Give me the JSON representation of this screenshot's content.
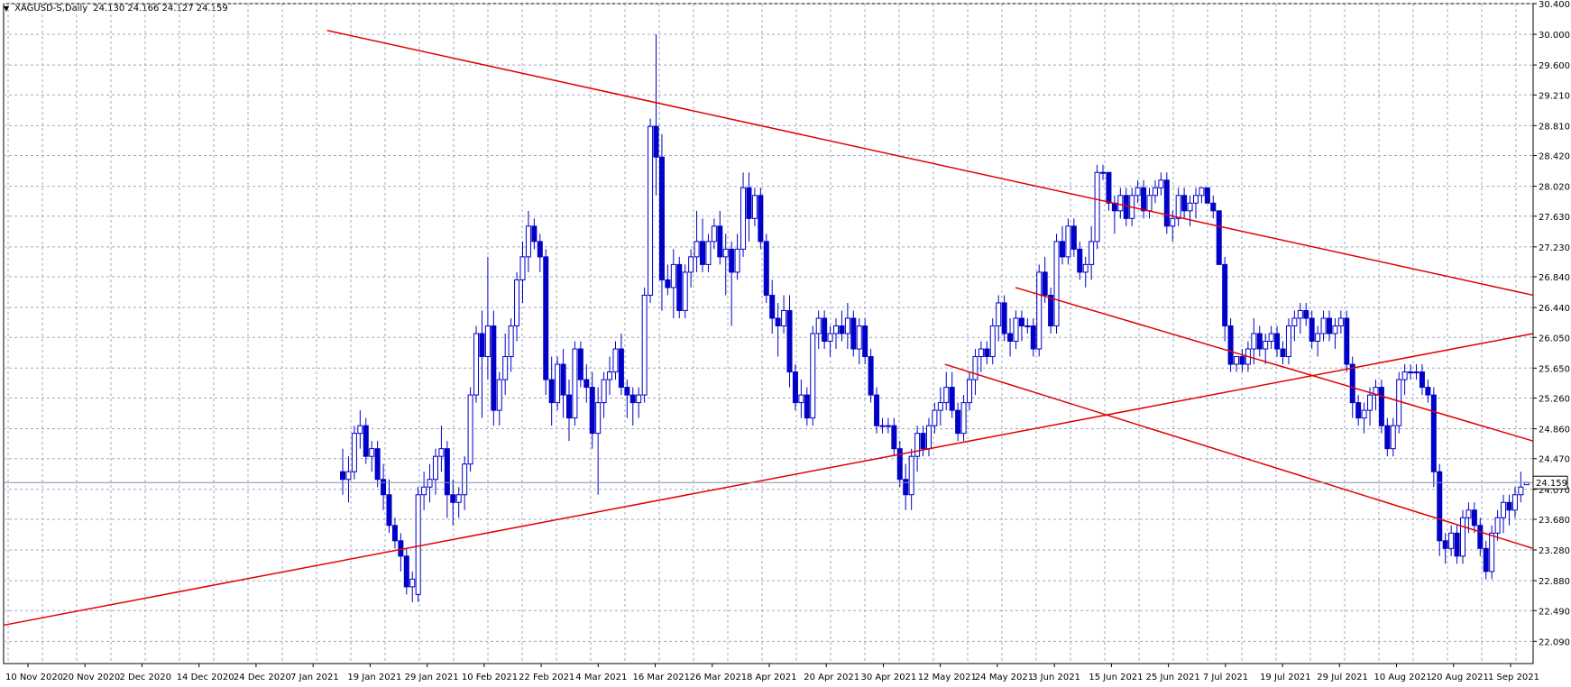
{
  "header": {
    "symbol": "XAGUSD-S,Daily",
    "ohlc": "24.130 24.166 24.127 24.159",
    "menu_icon": "triangle-down-icon"
  },
  "price_marker": "24.159",
  "colors": {
    "background": "#ffffff",
    "grid": "#a0a8b8",
    "candle": "#0000c8",
    "trendline": "#e00000",
    "axis": "#000000"
  },
  "chart_data": {
    "type": "candlestick",
    "y_ticks": [
      "30.400",
      "30.000",
      "29.600",
      "29.210",
      "28.810",
      "28.420",
      "28.020",
      "27.630",
      "27.230",
      "26.840",
      "26.440",
      "26.050",
      "25.650",
      "25.260",
      "24.860",
      "24.470",
      "24.070",
      "23.680",
      "23.280",
      "22.880",
      "22.490",
      "22.090"
    ],
    "x_ticks": [
      "10 Nov 2020",
      "20 Nov 2020",
      "2 Dec 2020",
      "14 Dec 2020",
      "24 Dec 2020",
      "7 Jan 2021",
      "19 Jan 2021",
      "29 Jan 2021",
      "10 Feb 2021",
      "22 Feb 2021",
      "4 Mar 2021",
      "16 Mar 2021",
      "26 Mar 2021",
      "8 Apr 2021",
      "20 Apr 2021",
      "30 Apr 2021",
      "12 May 2021",
      "24 May 2021",
      "3 Jun 2021",
      "15 Jun 2021",
      "25 Jun 2021",
      "7 Jul 2021",
      "19 Jul 2021",
      "29 Jul 2021",
      "10 Aug 2021",
      "20 Aug 2021",
      "1 Sep 2021"
    ],
    "ylim": [
      21.8,
      30.4
    ],
    "last_price": 24.159,
    "candles": [
      [
        24.3,
        24.6,
        24.0,
        24.2
      ],
      [
        24.2,
        24.5,
        23.9,
        24.3
      ],
      [
        24.3,
        24.9,
        24.2,
        24.8
      ],
      [
        24.8,
        25.1,
        24.6,
        24.9
      ],
      [
        24.9,
        25.0,
        24.4,
        24.5
      ],
      [
        24.5,
        24.7,
        24.3,
        24.6
      ],
      [
        24.6,
        24.7,
        24.1,
        24.2
      ],
      [
        24.2,
        24.4,
        23.8,
        24.0
      ],
      [
        24.0,
        24.2,
        23.5,
        23.6
      ],
      [
        23.6,
        23.7,
        23.3,
        23.4
      ],
      [
        23.4,
        23.5,
        23.0,
        23.2
      ],
      [
        23.2,
        23.3,
        22.7,
        22.8
      ],
      [
        22.8,
        23.0,
        22.6,
        22.9
      ],
      [
        22.7,
        24.1,
        22.6,
        24.0
      ],
      [
        24.0,
        24.3,
        23.8,
        24.1
      ],
      [
        24.1,
        24.4,
        23.9,
        24.2
      ],
      [
        24.2,
        24.6,
        24.0,
        24.5
      ],
      [
        24.5,
        24.9,
        24.3,
        24.6
      ],
      [
        24.6,
        24.7,
        23.7,
        24.0
      ],
      [
        24.0,
        24.2,
        23.6,
        23.9
      ],
      [
        23.9,
        24.1,
        23.7,
        24.0
      ],
      [
        24.0,
        24.5,
        23.8,
        24.4
      ],
      [
        24.4,
        25.4,
        24.3,
        25.3
      ],
      [
        25.3,
        26.2,
        25.2,
        26.1
      ],
      [
        26.1,
        26.4,
        25.0,
        25.8
      ],
      [
        25.8,
        27.1,
        25.5,
        26.2
      ],
      [
        26.2,
        26.4,
        24.9,
        25.1
      ],
      [
        25.1,
        25.6,
        24.9,
        25.5
      ],
      [
        25.5,
        26.1,
        25.3,
        25.8
      ],
      [
        25.8,
        26.3,
        25.6,
        26.2
      ],
      [
        26.2,
        26.9,
        26.0,
        26.8
      ],
      [
        26.8,
        27.3,
        26.5,
        27.1
      ],
      [
        27.1,
        27.7,
        26.9,
        27.5
      ],
      [
        27.5,
        27.6,
        27.2,
        27.3
      ],
      [
        27.3,
        27.4,
        26.9,
        27.1
      ],
      [
        27.1,
        27.2,
        25.3,
        25.5
      ],
      [
        25.5,
        25.8,
        24.9,
        25.2
      ],
      [
        25.2,
        25.8,
        25.1,
        25.7
      ],
      [
        25.7,
        25.9,
        25.0,
        25.3
      ],
      [
        25.3,
        25.5,
        24.7,
        25.0
      ],
      [
        25.0,
        26.0,
        24.9,
        25.9
      ],
      [
        25.9,
        26.0,
        25.4,
        25.5
      ],
      [
        25.5,
        25.7,
        25.2,
        25.4
      ],
      [
        25.4,
        25.6,
        24.6,
        24.8
      ],
      [
        24.8,
        25.4,
        24.0,
        25.2
      ],
      [
        25.2,
        25.6,
        25.0,
        25.5
      ],
      [
        25.5,
        25.8,
        25.3,
        25.6
      ],
      [
        25.6,
        26.0,
        25.5,
        25.9
      ],
      [
        25.9,
        26.1,
        25.3,
        25.4
      ],
      [
        25.4,
        25.5,
        25.0,
        25.3
      ],
      [
        25.3,
        25.4,
        24.9,
        25.2
      ],
      [
        25.2,
        25.4,
        25.0,
        25.3
      ],
      [
        25.3,
        26.7,
        25.2,
        26.6
      ],
      [
        26.6,
        28.9,
        26.5,
        28.8
      ],
      [
        28.8,
        30.0,
        27.9,
        28.4
      ],
      [
        28.4,
        28.7,
        26.4,
        26.8
      ],
      [
        26.8,
        27.0,
        26.6,
        26.7
      ],
      [
        26.7,
        27.2,
        26.3,
        27.0
      ],
      [
        27.0,
        27.1,
        26.3,
        26.4
      ],
      [
        26.4,
        27.0,
        26.3,
        26.9
      ],
      [
        26.9,
        27.2,
        26.7,
        27.1
      ],
      [
        27.1,
        27.7,
        26.9,
        27.3
      ],
      [
        27.3,
        27.6,
        26.9,
        27.0
      ],
      [
        27.0,
        27.4,
        26.9,
        27.3
      ],
      [
        27.3,
        27.6,
        27.2,
        27.5
      ],
      [
        27.5,
        27.7,
        27.0,
        27.1
      ],
      [
        27.1,
        27.4,
        26.6,
        27.2
      ],
      [
        27.2,
        27.3,
        26.2,
        26.9
      ],
      [
        26.9,
        27.4,
        26.8,
        27.2
      ],
      [
        27.2,
        28.2,
        27.1,
        28.0
      ],
      [
        28.0,
        28.2,
        27.3,
        27.6
      ],
      [
        27.6,
        28.0,
        27.5,
        27.9
      ],
      [
        27.9,
        28.0,
        27.2,
        27.3
      ],
      [
        27.3,
        27.4,
        26.5,
        26.6
      ],
      [
        26.6,
        26.8,
        26.1,
        26.3
      ],
      [
        26.3,
        26.5,
        25.8,
        26.2
      ],
      [
        26.2,
        26.6,
        26.1,
        26.4
      ],
      [
        26.4,
        26.6,
        25.4,
        25.6
      ],
      [
        25.6,
        25.7,
        25.1,
        25.2
      ],
      [
        25.2,
        25.5,
        25.0,
        25.3
      ],
      [
        25.3,
        25.4,
        24.9,
        25.0
      ],
      [
        25.0,
        26.2,
        24.9,
        26.1
      ],
      [
        26.1,
        26.4,
        25.9,
        26.3
      ],
      [
        26.3,
        26.4,
        25.9,
        26.0
      ],
      [
        26.0,
        26.2,
        25.8,
        26.1
      ],
      [
        26.1,
        26.3,
        25.9,
        26.2
      ],
      [
        26.2,
        26.4,
        26.0,
        26.1
      ],
      [
        26.1,
        26.5,
        25.9,
        26.3
      ],
      [
        26.3,
        26.4,
        25.8,
        25.9
      ],
      [
        25.9,
        26.3,
        25.7,
        26.2
      ],
      [
        26.2,
        26.3,
        25.7,
        25.8
      ],
      [
        25.8,
        25.9,
        25.2,
        25.3
      ],
      [
        25.3,
        25.4,
        24.8,
        24.9
      ],
      [
        24.9,
        25.0,
        24.8,
        24.9
      ],
      [
        24.9,
        25.0,
        24.8,
        24.9
      ],
      [
        24.9,
        25.0,
        24.5,
        24.6
      ],
      [
        24.6,
        24.7,
        24.1,
        24.2
      ],
      [
        24.2,
        24.4,
        23.8,
        24.0
      ],
      [
        24.0,
        24.6,
        23.8,
        24.5
      ],
      [
        24.5,
        24.9,
        24.3,
        24.8
      ],
      [
        24.8,
        24.9,
        24.5,
        24.6
      ],
      [
        24.6,
        25.0,
        24.5,
        24.9
      ],
      [
        24.9,
        25.2,
        24.8,
        25.1
      ],
      [
        25.1,
        25.4,
        24.9,
        25.2
      ],
      [
        25.2,
        25.6,
        25.1,
        25.4
      ],
      [
        25.4,
        25.6,
        25.0,
        25.1
      ],
      [
        25.1,
        25.2,
        24.7,
        24.8
      ],
      [
        24.8,
        25.3,
        24.7,
        25.2
      ],
      [
        25.2,
        25.6,
        25.1,
        25.5
      ],
      [
        25.5,
        25.9,
        25.3,
        25.8
      ],
      [
        25.8,
        26.0,
        25.6,
        25.9
      ],
      [
        25.9,
        26.0,
        25.7,
        25.8
      ],
      [
        25.8,
        26.3,
        25.7,
        26.2
      ],
      [
        26.2,
        26.6,
        26.0,
        26.5
      ],
      [
        26.5,
        26.6,
        26.0,
        26.1
      ],
      [
        26.1,
        26.3,
        25.8,
        26.0
      ],
      [
        26.0,
        26.4,
        25.9,
        26.3
      ],
      [
        26.3,
        26.4,
        26.0,
        26.2
      ],
      [
        26.2,
        26.3,
        26.1,
        26.2
      ],
      [
        26.2,
        26.3,
        25.8,
        25.9
      ],
      [
        25.9,
        27.0,
        25.8,
        26.9
      ],
      [
        26.9,
        27.1,
        26.5,
        26.6
      ],
      [
        26.6,
        26.7,
        26.1,
        26.2
      ],
      [
        26.2,
        27.4,
        26.1,
        27.3
      ],
      [
        27.3,
        27.5,
        27.0,
        27.1
      ],
      [
        27.1,
        27.6,
        27.0,
        27.5
      ],
      [
        27.5,
        27.6,
        27.1,
        27.2
      ],
      [
        27.2,
        27.3,
        26.8,
        26.9
      ],
      [
        26.9,
        27.1,
        26.7,
        27.0
      ],
      [
        27.0,
        27.5,
        26.8,
        27.3
      ],
      [
        27.3,
        28.3,
        27.2,
        28.2
      ],
      [
        28.2,
        28.3,
        28.1,
        28.2
      ],
      [
        28.2,
        28.2,
        27.7,
        27.8
      ],
      [
        27.8,
        27.9,
        27.4,
        27.7
      ],
      [
        27.7,
        28.0,
        27.6,
        27.9
      ],
      [
        27.9,
        28.0,
        27.5,
        27.6
      ],
      [
        27.6,
        28.0,
        27.5,
        27.9
      ],
      [
        27.9,
        28.1,
        27.8,
        28.0
      ],
      [
        28.0,
        28.1,
        27.6,
        27.7
      ],
      [
        27.7,
        28.0,
        27.6,
        27.9
      ],
      [
        27.9,
        28.1,
        27.8,
        28.0
      ],
      [
        28.0,
        28.2,
        27.9,
        28.1
      ],
      [
        28.1,
        28.2,
        27.4,
        27.5
      ],
      [
        27.5,
        27.7,
        27.3,
        27.6
      ],
      [
        27.6,
        28.0,
        27.5,
        27.9
      ],
      [
        27.9,
        28.0,
        27.6,
        27.7
      ],
      [
        27.7,
        27.9,
        27.5,
        27.8
      ],
      [
        27.8,
        28.0,
        27.6,
        27.9
      ],
      [
        27.9,
        28.0,
        27.8,
        28.0
      ],
      [
        28.0,
        28.0,
        27.8,
        27.8
      ],
      [
        27.8,
        27.9,
        27.6,
        27.7
      ],
      [
        27.7,
        27.7,
        27.0,
        27.0
      ],
      [
        27.0,
        27.1,
        26.0,
        26.2
      ],
      [
        26.2,
        26.3,
        25.6,
        25.7
      ],
      [
        25.7,
        25.8,
        25.6,
        25.8
      ],
      [
        25.8,
        25.9,
        25.6,
        25.7
      ],
      [
        25.7,
        26.0,
        25.6,
        25.9
      ],
      [
        25.9,
        26.3,
        25.7,
        26.1
      ],
      [
        26.1,
        26.2,
        25.8,
        25.9
      ],
      [
        25.9,
        26.1,
        25.7,
        26.0
      ],
      [
        26.0,
        26.2,
        25.9,
        26.1
      ],
      [
        26.1,
        26.2,
        25.8,
        25.9
      ],
      [
        25.9,
        26.0,
        25.7,
        25.8
      ],
      [
        25.8,
        26.3,
        25.7,
        26.2
      ],
      [
        26.2,
        26.4,
        26.0,
        26.3
      ],
      [
        26.3,
        26.5,
        26.1,
        26.4
      ],
      [
        26.4,
        26.5,
        26.2,
        26.3
      ],
      [
        26.3,
        26.4,
        25.9,
        26.0
      ],
      [
        26.0,
        26.2,
        25.8,
        26.1
      ],
      [
        26.1,
        26.4,
        26.0,
        26.3
      ],
      [
        26.3,
        26.4,
        26.0,
        26.1
      ],
      [
        26.1,
        26.3,
        25.9,
        26.2
      ],
      [
        26.2,
        26.4,
        26.1,
        26.3
      ],
      [
        26.3,
        26.4,
        25.6,
        25.7
      ],
      [
        25.7,
        25.8,
        25.0,
        25.2
      ],
      [
        25.2,
        25.3,
        24.9,
        25.0
      ],
      [
        25.0,
        25.2,
        24.8,
        25.1
      ],
      [
        25.1,
        25.4,
        24.9,
        25.3
      ],
      [
        25.3,
        25.5,
        25.1,
        25.4
      ],
      [
        25.4,
        25.5,
        24.8,
        24.9
      ],
      [
        24.9,
        25.0,
        24.5,
        24.6
      ],
      [
        24.6,
        25.0,
        24.5,
        24.9
      ],
      [
        24.9,
        25.6,
        24.8,
        25.5
      ],
      [
        25.5,
        25.7,
        25.3,
        25.6
      ],
      [
        25.6,
        25.7,
        25.5,
        25.6
      ],
      [
        25.6,
        25.7,
        25.5,
        25.6
      ],
      [
        25.6,
        25.7,
        25.3,
        25.4
      ],
      [
        25.4,
        25.5,
        25.2,
        25.3
      ],
      [
        25.3,
        25.4,
        24.1,
        24.3
      ],
      [
        24.3,
        24.4,
        23.2,
        23.4
      ],
      [
        23.4,
        23.5,
        23.1,
        23.3
      ],
      [
        23.3,
        23.6,
        23.2,
        23.5
      ],
      [
        23.5,
        23.6,
        23.1,
        23.2
      ],
      [
        23.2,
        23.8,
        23.1,
        23.7
      ],
      [
        23.7,
        23.9,
        23.5,
        23.8
      ],
      [
        23.8,
        23.9,
        23.5,
        23.6
      ],
      [
        23.6,
        23.7,
        23.2,
        23.3
      ],
      [
        23.3,
        23.4,
        22.9,
        23.0
      ],
      [
        23.0,
        23.6,
        22.9,
        23.5
      ],
      [
        23.5,
        23.8,
        23.4,
        23.7
      ],
      [
        23.7,
        24.0,
        23.5,
        23.9
      ],
      [
        23.9,
        24.0,
        23.6,
        23.8
      ],
      [
        23.8,
        24.1,
        23.7,
        24.0
      ],
      [
        24.0,
        24.3,
        23.9,
        24.1
      ],
      [
        24.13,
        24.166,
        24.127,
        24.159
      ]
    ],
    "trendlines": [
      {
        "from": [
          0,
          22.3
        ],
        "to": [
          260,
          26.1
        ]
      },
      {
        "from": [
          55,
          30.05
        ],
        "to": [
          260,
          26.6
        ]
      },
      {
        "from": [
          160,
          25.7
        ],
        "to": [
          260,
          23.3
        ]
      },
      {
        "from": [
          172,
          26.7
        ],
        "to": [
          260,
          24.7
        ]
      }
    ]
  }
}
